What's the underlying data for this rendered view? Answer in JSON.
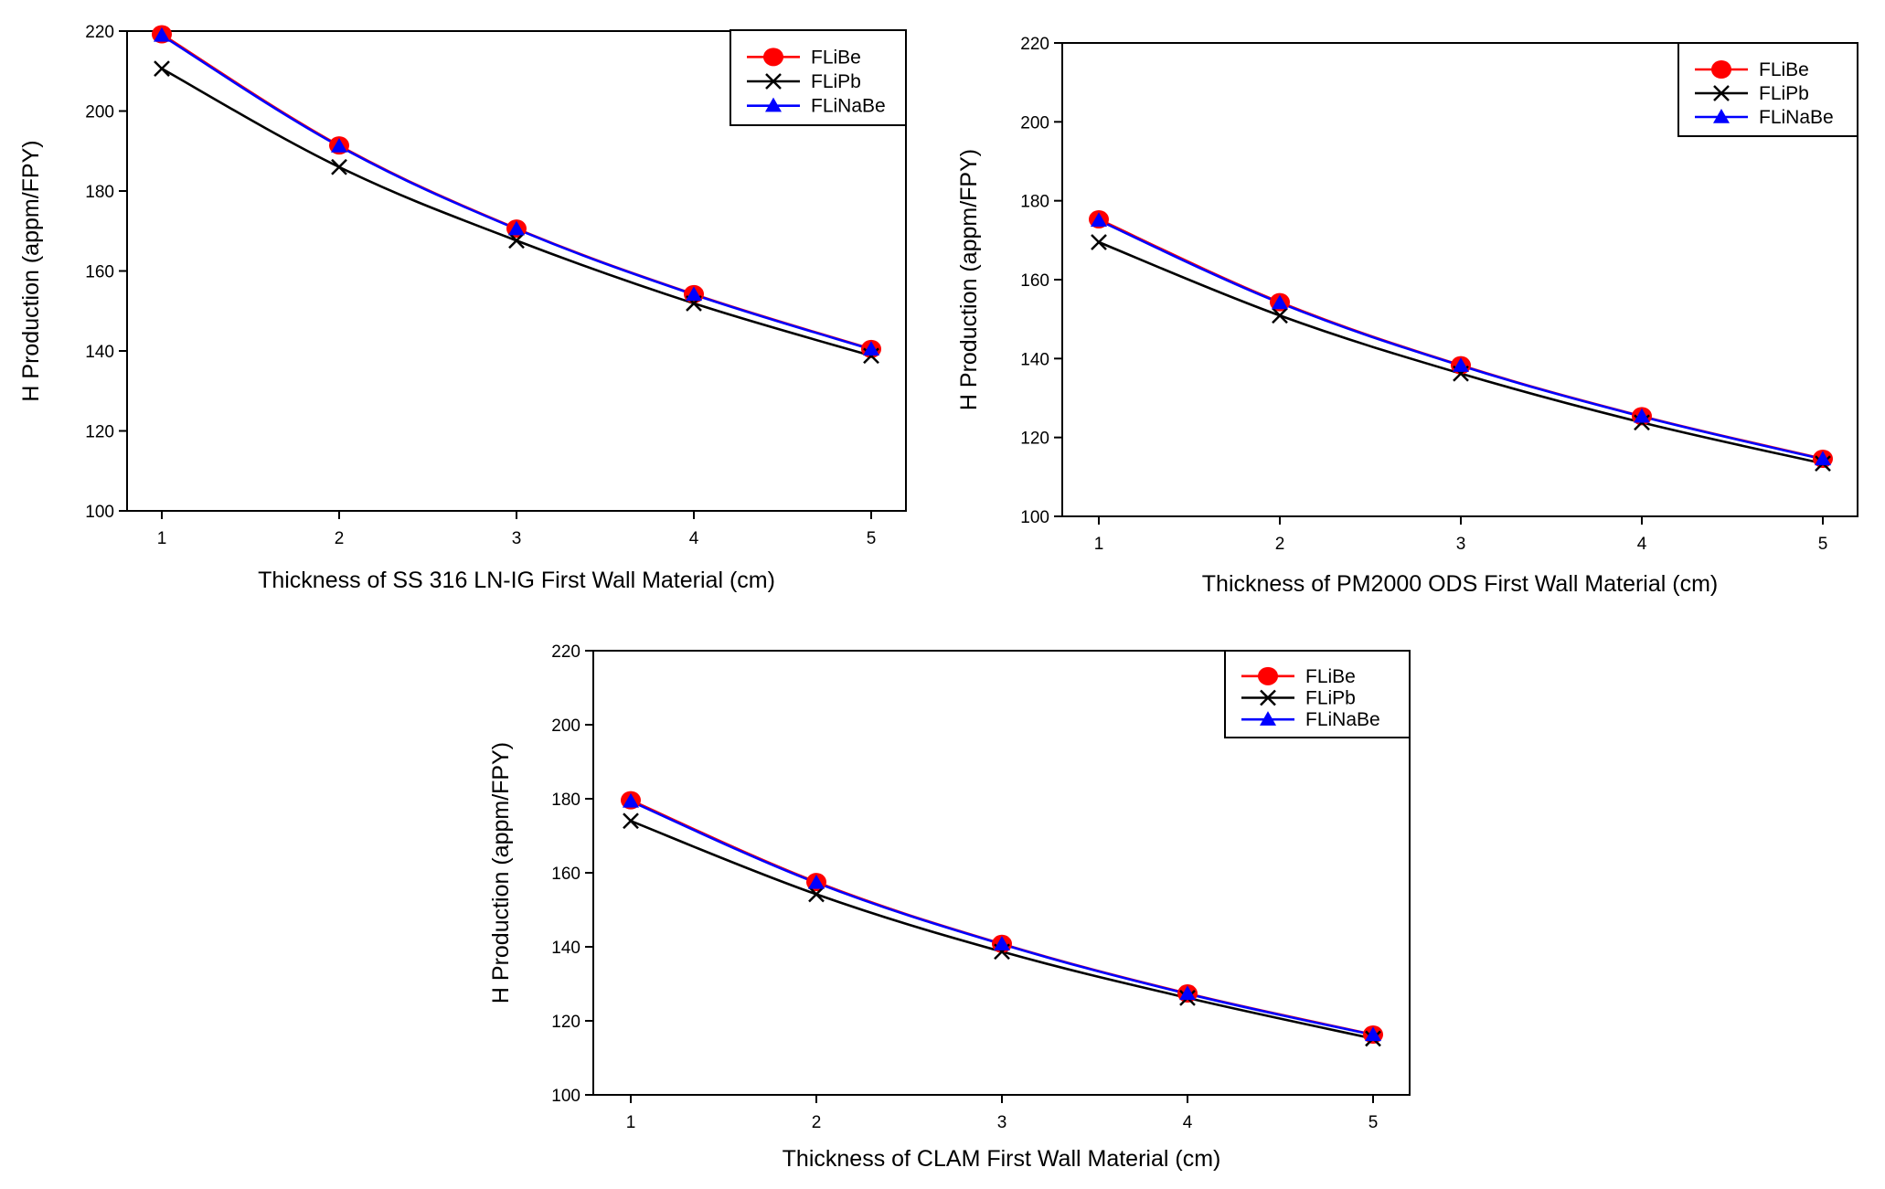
{
  "chart_data": [
    {
      "type": "line",
      "title": "",
      "xlabel": "Thickness of SS 316 LN-IG First Wall Material (cm)",
      "ylabel": "H Production (appm/FPY)",
      "x": [
        1,
        2,
        3,
        4,
        5
      ],
      "xticks": [
        "1",
        "2",
        "3",
        "4",
        "5"
      ],
      "ylim": [
        100,
        220
      ],
      "yticks": [
        "100",
        "120",
        "140",
        "160",
        "180",
        "200",
        "220"
      ],
      "grid": false,
      "legend_position": "top-right",
      "series": [
        {
          "name": "FLiBe",
          "color": "#ff0000",
          "marker": "circle",
          "values": [
            219.2,
            191.4,
            170.6,
            154.2,
            140.5
          ]
        },
        {
          "name": "FLiPb",
          "color": "#000000",
          "marker": "x",
          "values": [
            210.6,
            186.0,
            167.6,
            151.9,
            138.8
          ]
        },
        {
          "name": "FLiNaBe",
          "color": "#0000ff",
          "marker": "triangle",
          "values": [
            218.9,
            191.2,
            170.5,
            154.1,
            140.4
          ]
        }
      ]
    },
    {
      "type": "line",
      "title": "",
      "xlabel": "Thickness of PM2000 ODS First Wall Material (cm)",
      "ylabel": "H Production (appm/FPY)",
      "x": [
        1,
        2,
        3,
        4,
        5
      ],
      "xticks": [
        "1",
        "2",
        "3",
        "4",
        "5"
      ],
      "ylim": [
        100,
        220
      ],
      "yticks": [
        "100",
        "120",
        "140",
        "160",
        "180",
        "200",
        "220"
      ],
      "grid": false,
      "legend_position": "top-right",
      "series": [
        {
          "name": "FLiBe",
          "color": "#ff0000",
          "marker": "circle",
          "values": [
            175.3,
            154.3,
            138.3,
            125.4,
            114.6
          ]
        },
        {
          "name": "FLiPb",
          "color": "#000000",
          "marker": "x",
          "values": [
            169.5,
            150.9,
            136.2,
            123.8,
            113.4
          ]
        },
        {
          "name": "FLiNaBe",
          "color": "#0000ff",
          "marker": "triangle",
          "values": [
            175.0,
            154.1,
            138.2,
            125.3,
            114.5
          ]
        }
      ]
    },
    {
      "type": "line",
      "title": "",
      "xlabel": "Thickness of CLAM First Wall Material (cm)",
      "ylabel": "H Production (appm/FPY)",
      "x": [
        1,
        2,
        3,
        4,
        5
      ],
      "xticks": [
        "1",
        "2",
        "3",
        "4",
        "5"
      ],
      "ylim": [
        100,
        220
      ],
      "yticks": [
        "100",
        "120",
        "140",
        "160",
        "180",
        "200",
        "220"
      ],
      "grid": false,
      "legend_position": "top-right",
      "series": [
        {
          "name": "FLiBe",
          "color": "#ff0000",
          "marker": "circle",
          "values": [
            179.6,
            157.5,
            140.8,
            127.4,
            116.3
          ]
        },
        {
          "name": "FLiPb",
          "color": "#000000",
          "marker": "x",
          "values": [
            174.0,
            154.2,
            138.7,
            126.2,
            115.2
          ]
        },
        {
          "name": "FLiNaBe",
          "color": "#0000ff",
          "marker": "triangle",
          "values": [
            179.3,
            157.3,
            140.7,
            127.3,
            116.2
          ]
        }
      ]
    }
  ]
}
